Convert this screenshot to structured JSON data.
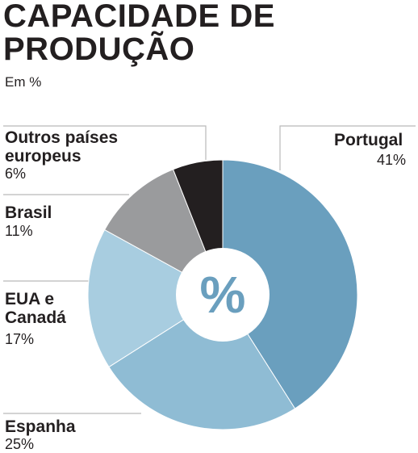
{
  "header": {
    "title_line1": "CAPACIDADE DE",
    "title_line2": "PRODUÇÃO",
    "subtitle": "Em %"
  },
  "chart_data": {
    "type": "pie",
    "donut": true,
    "center_label": "%",
    "categories": [
      "Portugal",
      "Espanha",
      "EUA e Canadá",
      "Brasil",
      "Outros países europeus"
    ],
    "values": [
      41,
      25,
      17,
      11,
      6
    ],
    "value_labels": [
      "41%",
      "25%",
      "17%",
      "11%",
      "6%"
    ],
    "colors": [
      "#6a9fbe",
      "#8fbcd4",
      "#a8cde0",
      "#9a9b9d",
      "#231f20"
    ],
    "center_color": "#6a9fbe"
  },
  "labels": {
    "portugal": {
      "name": "Portugal",
      "value": "41%"
    },
    "espanha": {
      "name": "Espanha",
      "value": "25%"
    },
    "eua": {
      "name_line1": "EUA e",
      "name_line2": "Canadá",
      "value": "17%"
    },
    "brasil": {
      "name": "Brasil",
      "value": "11%"
    },
    "outros": {
      "name_line1": "Outros países",
      "name_line2": "europeus",
      "value": "6%"
    }
  }
}
